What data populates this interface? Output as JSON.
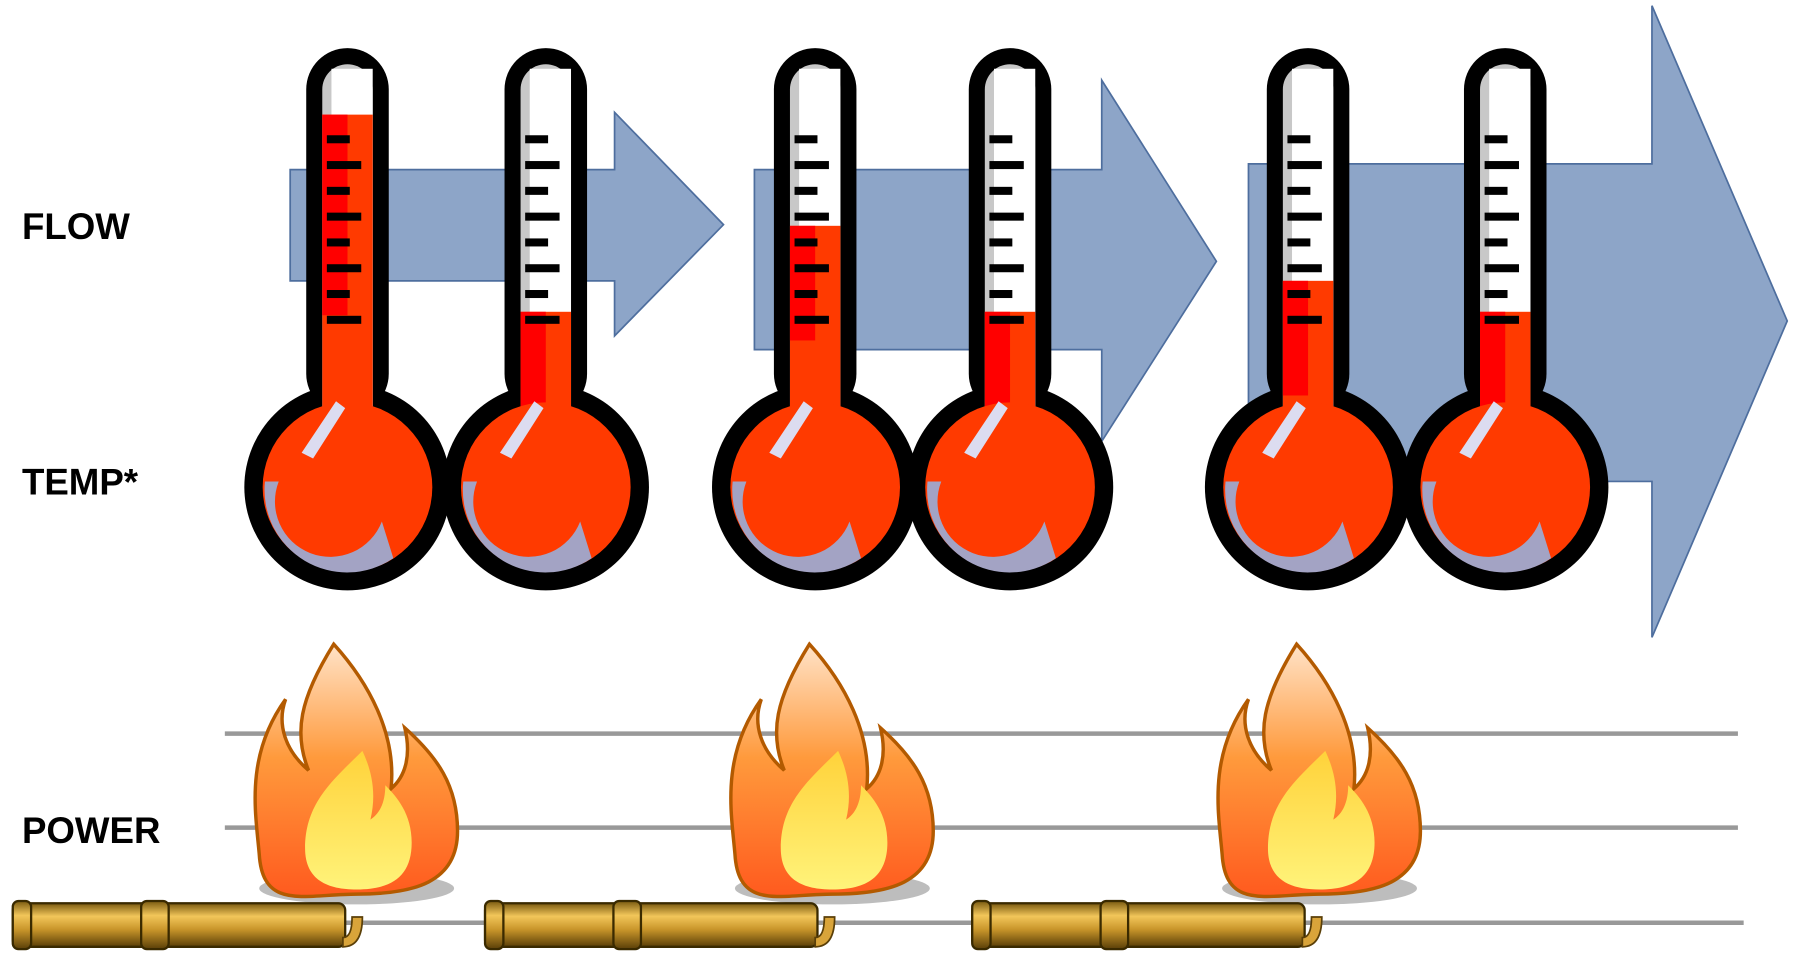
{
  "labels": {
    "flow": "FLOW",
    "temp": "TEMP*",
    "power": "POWER"
  }
}
